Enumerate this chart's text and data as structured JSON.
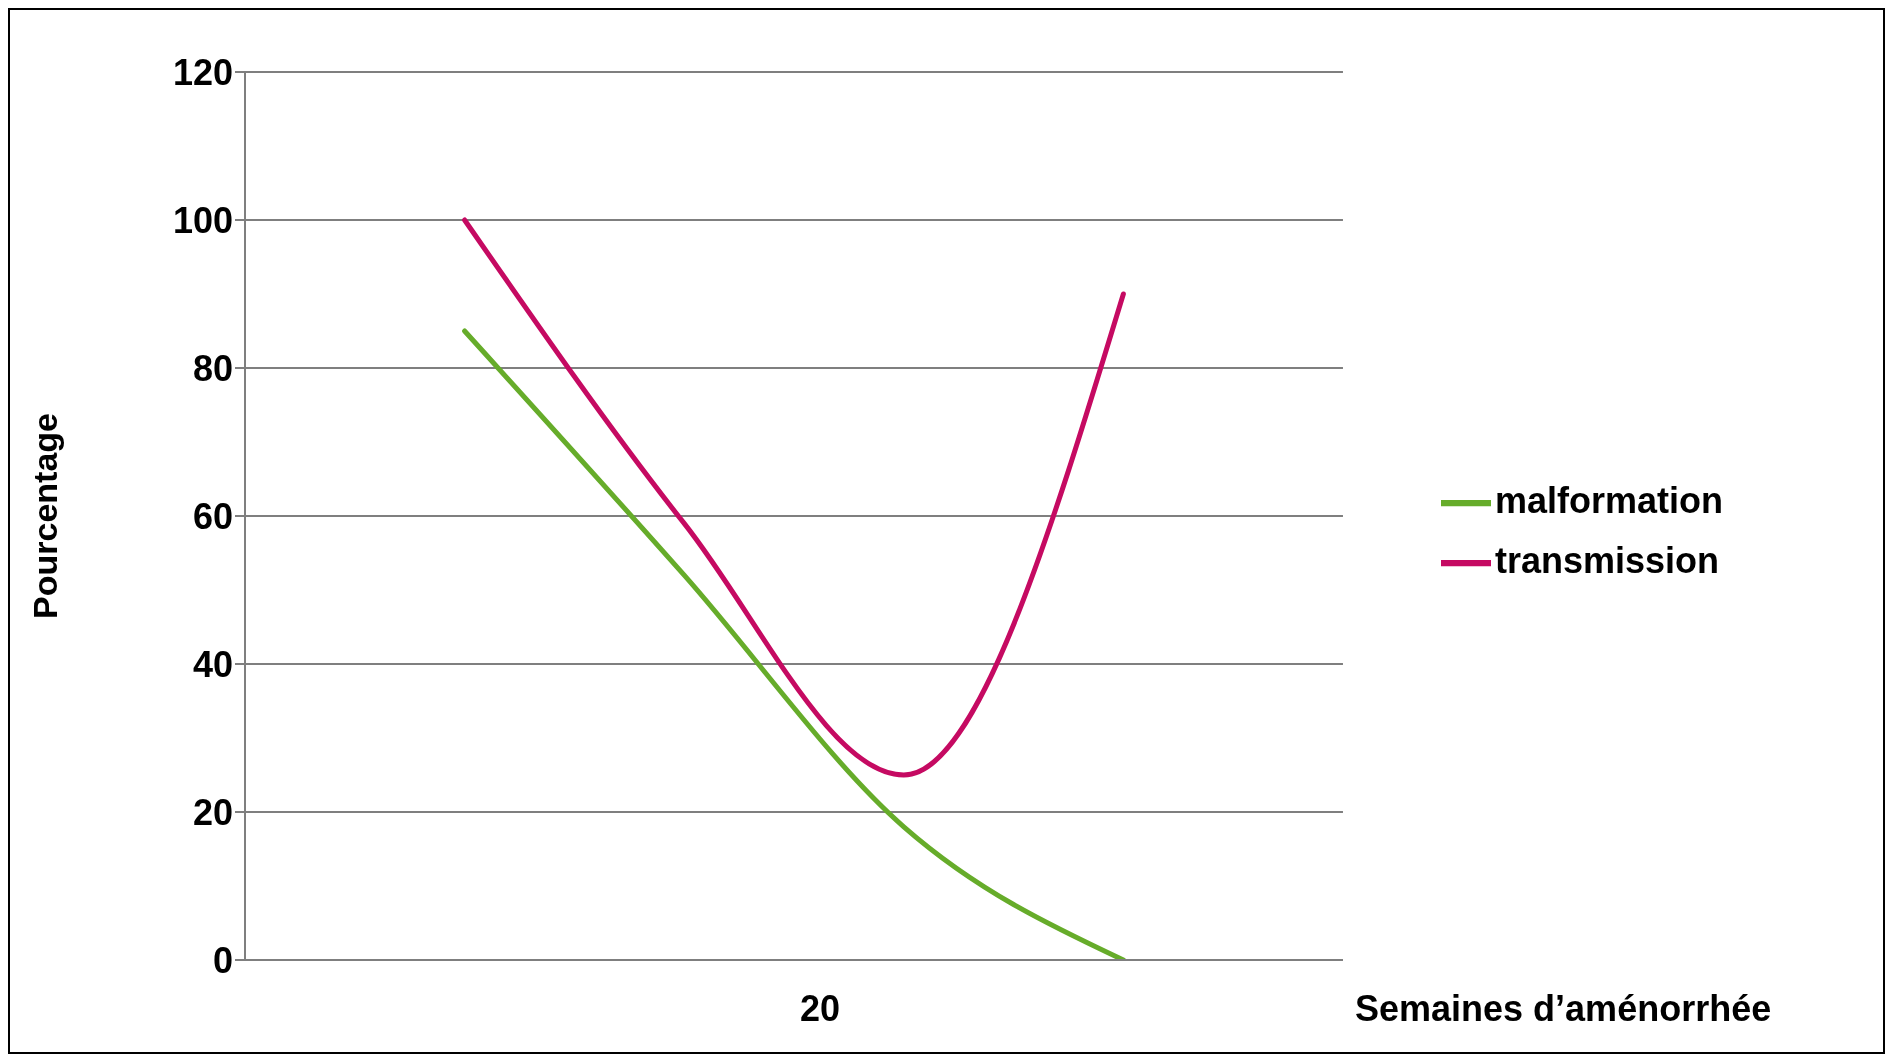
{
  "chart_data": {
    "type": "line",
    "xlabel": "Semaines d’aménorrhée",
    "ylabel": "Pourcentage",
    "categories": [
      null,
      null,
      null,
      null
    ],
    "series": [
      {
        "name": "malformation",
        "color": "#66ac2a",
        "values": [
          85,
          52,
          18,
          0
        ]
      },
      {
        "name": "transmission",
        "color": "#c50a62",
        "values": [
          100,
          59,
          25,
          90
        ]
      }
    ],
    "annotations": [
      "20"
    ],
    "ylim": [
      0,
      120
    ],
    "yticks": [
      0,
      20,
      40,
      60,
      80,
      100,
      120
    ],
    "grid": "y",
    "legend": "right",
    "marker": "none",
    "line_style": "solid"
  }
}
